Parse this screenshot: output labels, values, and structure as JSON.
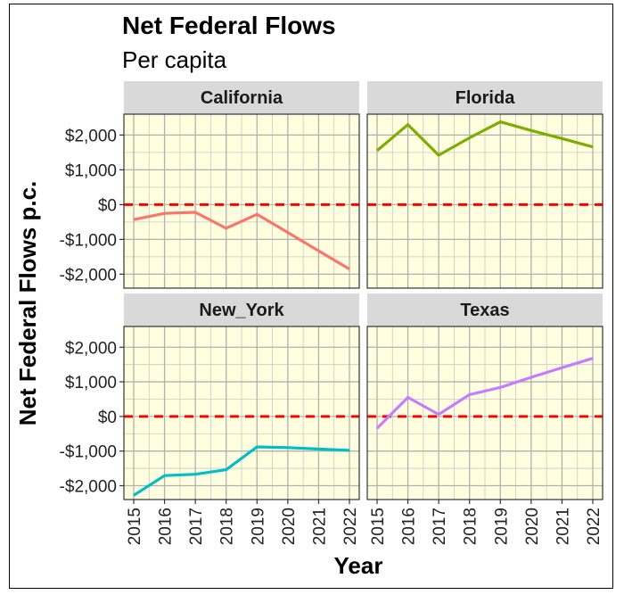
{
  "title": "Net Federal Flows",
  "subtitle": "Per capita",
  "chart_data": {
    "type": "line",
    "layout": "facet-2x2",
    "xlabel": "Year",
    "ylabel": "Net Federal Flows p.c.",
    "x": [
      2015,
      2016,
      2017,
      2018,
      2019,
      2020,
      2021,
      2022
    ],
    "ylim": [
      -2400,
      2600
    ],
    "y_ticks": [
      -2000,
      -1000,
      0,
      1000,
      2000
    ],
    "y_tick_labels": [
      "-$2,000",
      "-$1,000",
      "$0",
      "$1,000",
      "$2,000"
    ],
    "reference_line": {
      "y": 0,
      "style": "dashed",
      "color": "#ff0000"
    },
    "panel_background": "#ffffe0",
    "grid": true,
    "facets": [
      {
        "name": "California",
        "color": "#f8766d",
        "values": [
          -430,
          -250,
          -220,
          -680,
          -280,
          -800,
          -1330,
          -1850
        ]
      },
      {
        "name": "Florida",
        "color": "#7cae00",
        "values": [
          1550,
          2300,
          1420,
          1920,
          2380,
          2130,
          1900,
          1660
        ]
      },
      {
        "name": "New_York",
        "color": "#00bfc4",
        "values": [
          -2280,
          -1710,
          -1670,
          -1540,
          -880,
          -900,
          -940,
          -980
        ]
      },
      {
        "name": "Texas",
        "color": "#c77cff",
        "values": [
          -340,
          550,
          60,
          630,
          840,
          1130,
          1410,
          1680
        ]
      }
    ]
  }
}
